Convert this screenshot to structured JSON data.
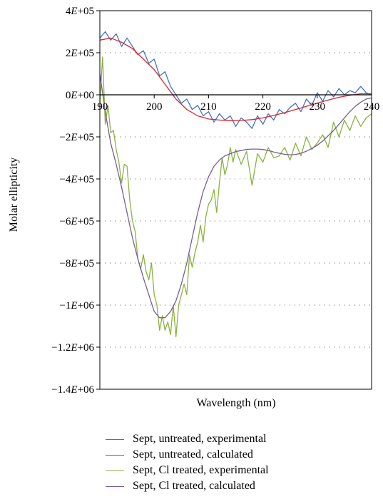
{
  "chart_data": {
    "type": "line",
    "title": "",
    "xlabel": "Wavelength (nm)",
    "ylabel": "Molar ellipticity",
    "xlim": [
      190,
      240
    ],
    "ylim": [
      -1400000,
      400000
    ],
    "x_ticks": [
      "190",
      "200",
      "210",
      "220",
      "230",
      "240"
    ],
    "y_ticks": [
      {
        "value": 400000,
        "label": "4E+05"
      },
      {
        "value": 200000,
        "label": "2E+05"
      },
      {
        "value": 0,
        "label": "0E+00"
      },
      {
        "value": -200000,
        "label": "−2E+05"
      },
      {
        "value": -400000,
        "label": "−4E+05"
      },
      {
        "value": -600000,
        "label": "−6E+05"
      },
      {
        "value": -800000,
        "label": "−8E+05"
      },
      {
        "value": -1000000,
        "label": "−1E+06"
      },
      {
        "value": -1200000,
        "label": "−1.2E+06"
      },
      {
        "value": -1400000,
        "label": "−1.4E+06"
      }
    ],
    "grid": "horizontal dotted",
    "legend_position": "bottom",
    "series": [
      {
        "name": "Sept, untreated, experimental",
        "color": "#4472c4",
        "x": [
          190,
          191,
          192,
          193,
          194,
          195,
          196,
          197,
          198,
          199,
          200,
          201,
          202,
          203,
          204,
          205,
          206,
          207,
          208,
          209,
          210,
          211,
          212,
          213,
          214,
          215,
          216,
          217,
          218,
          219,
          220,
          221,
          222,
          223,
          224,
          225,
          226,
          227,
          228,
          229,
          230,
          231,
          232,
          233,
          234,
          235,
          236,
          237,
          238,
          239,
          240
        ],
        "y": [
          270000,
          300000,
          260000,
          290000,
          230000,
          270000,
          230000,
          190000,
          210000,
          150000,
          170000,
          90000,
          110000,
          40000,
          0,
          -40000,
          -20000,
          -70000,
          -50000,
          -100000,
          -80000,
          -130000,
          -90000,
          -120000,
          -100000,
          -150000,
          -110000,
          -130000,
          -160000,
          -100000,
          -140000,
          -90000,
          -120000,
          -70000,
          -90000,
          -60000,
          -40000,
          -80000,
          -20000,
          -50000,
          10000,
          -30000,
          20000,
          -10000,
          30000,
          0,
          20000,
          10000,
          40000,
          10000,
          0
        ]
      },
      {
        "name": "Sept, untreated, calculated",
        "color": "#d9262b",
        "x": [
          190,
          192,
          194,
          196,
          198,
          200,
          202,
          204,
          206,
          208,
          210,
          212,
          214,
          216,
          218,
          220,
          222,
          224,
          226,
          228,
          230,
          232,
          234,
          236,
          238,
          240
        ],
        "y": [
          260000,
          270000,
          250000,
          220000,
          170000,
          120000,
          50000,
          -20000,
          -70000,
          -100000,
          -115000,
          -120000,
          -123000,
          -122000,
          -118000,
          -110000,
          -98000,
          -85000,
          -70000,
          -55000,
          -40000,
          -25000,
          -12000,
          -2000,
          5000,
          5000
        ]
      },
      {
        "name": "Sept, Cl treated, experimental",
        "color": "#8ab33f",
        "x": [
          190,
          190.5,
          191,
          191.5,
          192,
          192.5,
          193,
          193.5,
          194,
          194.5,
          195,
          195.5,
          196,
          196.5,
          197,
          197.5,
          198,
          198.5,
          199,
          199.5,
          200,
          200.5,
          201,
          201.5,
          202,
          202.5,
          203,
          203.5,
          204,
          204.5,
          205,
          205.5,
          206,
          206.5,
          207,
          207.5,
          208,
          208.5,
          209,
          209.5,
          210,
          210.5,
          211,
          211.5,
          212,
          212.5,
          213,
          213.5,
          214,
          214.5,
          215,
          216,
          217,
          218,
          219,
          220,
          221,
          222,
          223,
          224,
          225,
          226,
          227,
          228,
          229,
          230,
          231,
          232,
          233,
          234,
          235,
          236,
          237,
          238,
          239,
          240
        ],
        "y": [
          -50000,
          180000,
          -140000,
          -50000,
          -180000,
          -170000,
          -260000,
          -320000,
          -420000,
          -330000,
          -340000,
          -500000,
          -600000,
          -650000,
          -780000,
          -830000,
          -760000,
          -840000,
          -880000,
          -800000,
          -950000,
          -1000000,
          -1120000,
          -1050000,
          -1120000,
          -1080000,
          -1140000,
          -1000000,
          -1150000,
          -1000000,
          -950000,
          -900000,
          -950000,
          -760000,
          -820000,
          -750000,
          -700000,
          -620000,
          -700000,
          -580000,
          -520000,
          -500000,
          -450000,
          -560000,
          -420000,
          -300000,
          -380000,
          -330000,
          -250000,
          -320000,
          -260000,
          -330000,
          -270000,
          -430000,
          -280000,
          -320000,
          -250000,
          -300000,
          -290000,
          -250000,
          -310000,
          -230000,
          -290000,
          -200000,
          -260000,
          -230000,
          -190000,
          -250000,
          -130000,
          -200000,
          -120000,
          -170000,
          -100000,
          -150000,
          -110000,
          -90000
        ]
      },
      {
        "name": "Sept, Cl treated, calculated",
        "color": "#7a5c9a",
        "x": [
          190,
          191,
          192,
          193,
          194,
          195,
          196,
          197,
          198,
          199,
          200,
          201,
          202,
          203,
          204,
          205,
          206,
          207,
          208,
          209,
          210,
          211,
          212,
          213,
          214,
          215,
          216,
          217,
          218,
          219,
          220,
          221,
          222,
          223,
          224,
          225,
          226,
          227,
          228,
          229,
          230,
          231,
          232,
          233,
          234,
          235,
          236,
          237,
          238,
          239,
          240
        ],
        "y": [
          100000,
          -80000,
          -230000,
          -330000,
          -440000,
          -560000,
          -680000,
          -780000,
          -870000,
          -950000,
          -1030000,
          -1060000,
          -1060000,
          -1030000,
          -980000,
          -900000,
          -800000,
          -680000,
          -560000,
          -460000,
          -390000,
          -340000,
          -310000,
          -290000,
          -280000,
          -270000,
          -265000,
          -260000,
          -258000,
          -258000,
          -260000,
          -265000,
          -272000,
          -278000,
          -283000,
          -285000,
          -284000,
          -278000,
          -268000,
          -255000,
          -240000,
          -220000,
          -195000,
          -170000,
          -140000,
          -110000,
          -80000,
          -55000,
          -35000,
          -20000,
          -15000
        ]
      }
    ]
  }
}
